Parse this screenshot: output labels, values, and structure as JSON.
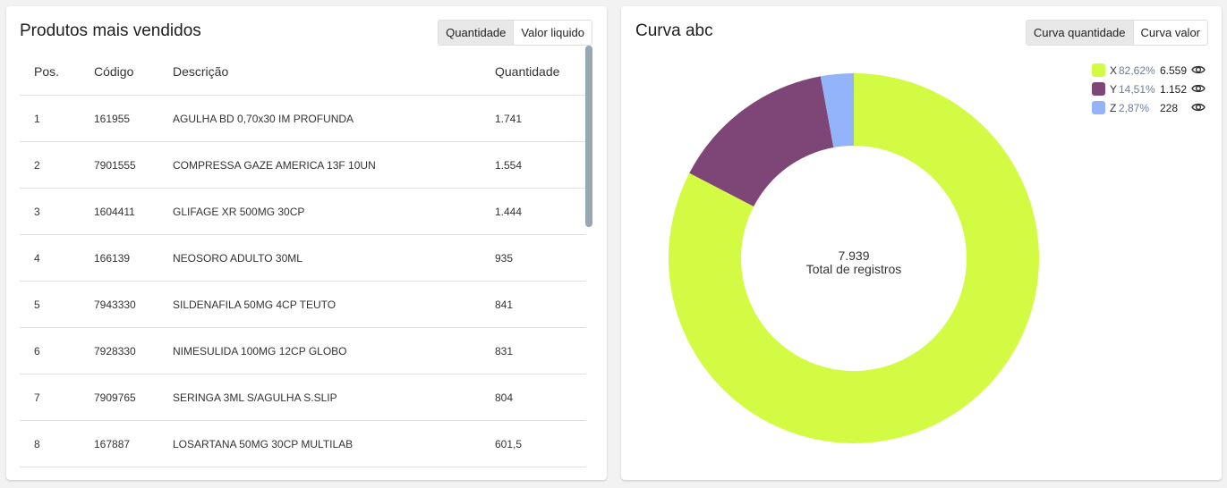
{
  "top_products": {
    "title": "Produtos mais vendidos",
    "toggle": [
      "Quantidade",
      "Valor liquido"
    ],
    "active_toggle": 0,
    "columns": {
      "pos": "Pos.",
      "code": "Código",
      "desc": "Descrição",
      "qty": "Quantidade"
    },
    "rows": [
      {
        "pos": "1",
        "code": "161955",
        "desc": "AGULHA BD 0,70x30 IM PROFUNDA",
        "qty": "1.741"
      },
      {
        "pos": "2",
        "code": "7901555",
        "desc": "COMPRESSA GAZE AMERICA 13F 10UN",
        "qty": "1.554"
      },
      {
        "pos": "3",
        "code": "1604411",
        "desc": "GLIFAGE XR 500MG 30CP",
        "qty": "1.444"
      },
      {
        "pos": "4",
        "code": "166139",
        "desc": "NEOSORO ADULTO 30ML",
        "qty": "935"
      },
      {
        "pos": "5",
        "code": "7943330",
        "desc": "SILDENAFILA 50MG 4CP TEUTO",
        "qty": "841"
      },
      {
        "pos": "6",
        "code": "7928330",
        "desc": "NIMESULIDA 100MG 12CP GLOBO",
        "qty": "831"
      },
      {
        "pos": "7",
        "code": "7909765",
        "desc": "SERINGA 3ML S/AGULHA S.SLIP",
        "qty": "804"
      },
      {
        "pos": "8",
        "code": "167887",
        "desc": "LOSARTANA 50MG 30CP MULTILAB",
        "qty": "601,5"
      }
    ]
  },
  "abc_curve": {
    "title": "Curva abc",
    "toggle": [
      "Curva quantidade",
      "Curva valor"
    ],
    "active_toggle": 0,
    "center_value": "7.939",
    "center_label": "Total de registros",
    "legend": [
      {
        "letter": "X",
        "pct": "82,62%",
        "value": "6.559",
        "icon": "eye-icon"
      },
      {
        "letter": "Y",
        "pct": "14,51%",
        "value": "1.152",
        "icon": "eye-icon"
      },
      {
        "letter": "Z",
        "pct": "2,87%",
        "value": "228",
        "icon": "eye-icon"
      }
    ]
  },
  "chart_data": {
    "type": "pie",
    "categories": [
      "X",
      "Y",
      "Z"
    ],
    "values": [
      6559,
      1152,
      228
    ],
    "percentages": [
      82.62,
      14.51,
      2.87
    ],
    "colors": [
      "#d4fb43",
      "#7d4676",
      "#93b4fb"
    ],
    "title": "Curva abc",
    "legend_position": "top-right"
  }
}
